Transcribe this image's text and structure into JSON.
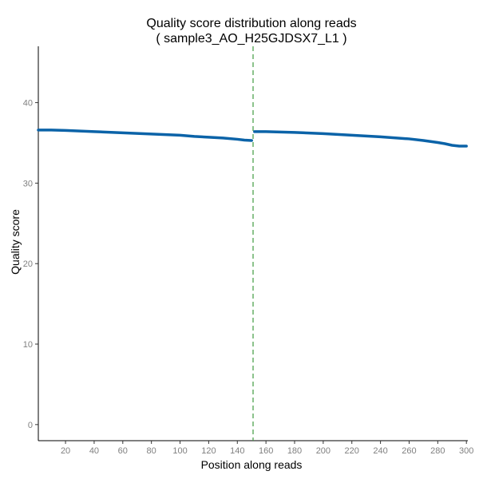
{
  "chart_data": {
    "type": "line",
    "title": "Quality score distribution along reads",
    "subtitle": "( sample3_AO_H25GJDSX7_L1 )",
    "xlabel": "Position along reads",
    "ylabel": "Quality score",
    "xlim": [
      1,
      301
    ],
    "ylim": [
      -2,
      47
    ],
    "x_ticks": [
      20,
      40,
      60,
      80,
      100,
      120,
      140,
      160,
      180,
      200,
      220,
      240,
      260,
      280,
      300
    ],
    "y_ticks": [
      0,
      10,
      20,
      30,
      40
    ],
    "grid": false,
    "legend": "none",
    "divider": {
      "x": 151,
      "style": "dashed",
      "color": "#3f9b3f"
    },
    "series": [
      {
        "color": "#0b63a8",
        "x": [
          1,
          10,
          20,
          40,
          60,
          80,
          100,
          110,
          120,
          130,
          140,
          145,
          150
        ],
        "y": [
          36.6,
          36.6,
          36.55,
          36.4,
          36.25,
          36.1,
          35.95,
          35.8,
          35.7,
          35.6,
          35.45,
          35.35,
          35.3
        ]
      },
      {
        "color": "#0b63a8",
        "x": [
          152,
          160,
          180,
          200,
          220,
          240,
          260,
          270,
          280,
          285,
          290,
          295,
          300
        ],
        "y": [
          36.4,
          36.4,
          36.3,
          36.15,
          35.95,
          35.75,
          35.5,
          35.3,
          35.05,
          34.9,
          34.7,
          34.6,
          34.6
        ]
      }
    ]
  }
}
